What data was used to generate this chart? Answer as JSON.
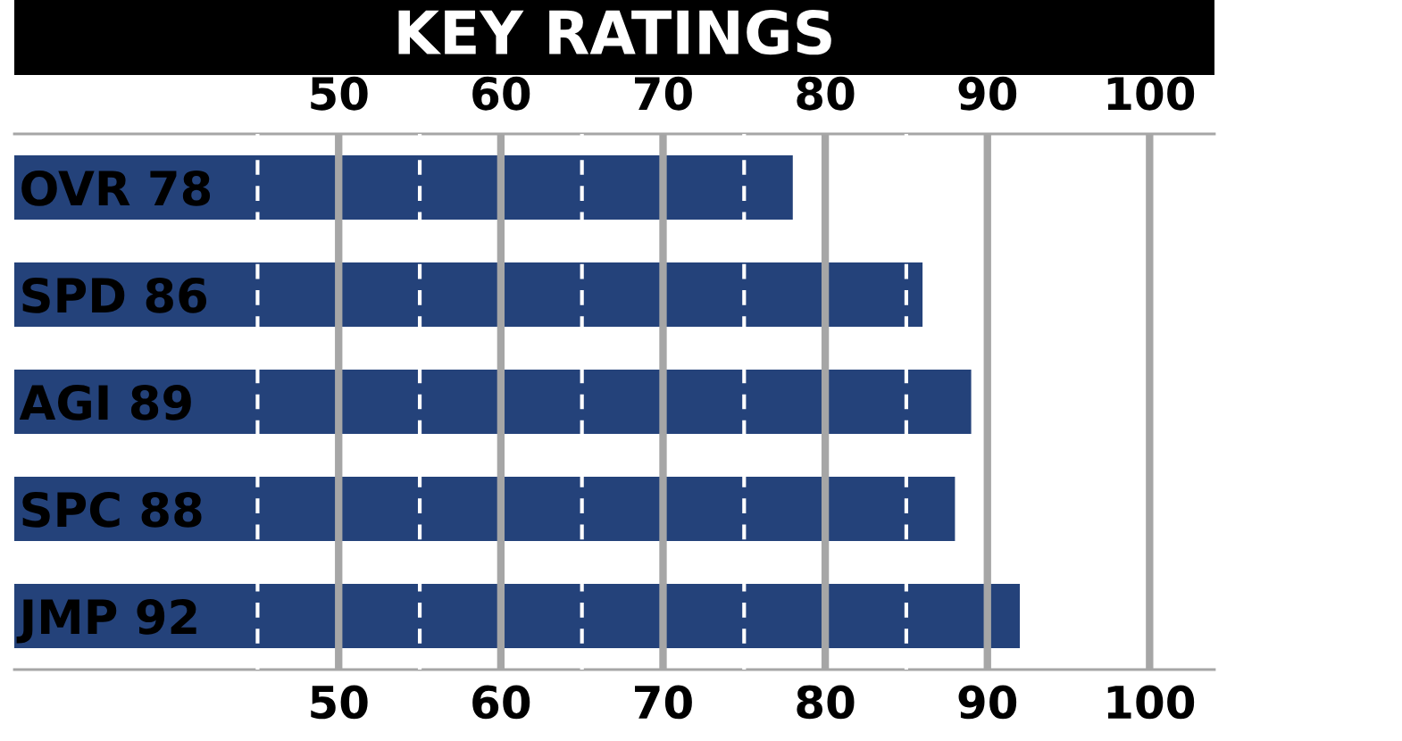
{
  "chart_data": {
    "type": "bar",
    "orientation": "horizontal",
    "title": "KEY RATINGS",
    "categories": [
      "OVR 78",
      "SPD 86",
      "AGI 89",
      "SPC 88",
      "JMP 92"
    ],
    "values": [
      78,
      86,
      89,
      88,
      92
    ],
    "color": "#24427a",
    "xlim": [
      30,
      104
    ],
    "xticks": [
      50,
      60,
      70,
      80,
      90,
      100
    ],
    "x2lim": [
      30,
      104
    ],
    "x2ticks": [
      50,
      60,
      70,
      80,
      90,
      100
    ],
    "grid": "x",
    "ref_lines": [
      {
        "axis": "x",
        "value": 45,
        "color": "#ffffff",
        "line_style": "dashed"
      },
      {
        "axis": "x",
        "value": 55,
        "color": "#ffffff",
        "line_style": "dashed"
      },
      {
        "axis": "x",
        "value": 65,
        "color": "#ffffff",
        "line_style": "dashed"
      },
      {
        "axis": "x",
        "value": 75,
        "color": "#ffffff",
        "line_style": "dashed"
      },
      {
        "axis": "x",
        "value": 85,
        "color": "#ffffff",
        "line_style": "dashed"
      }
    ]
  }
}
